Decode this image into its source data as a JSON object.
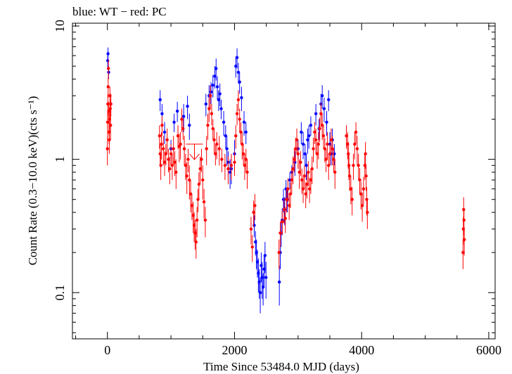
{
  "chart_data": {
    "type": "scatter",
    "title": "blue: WT − red: PC",
    "xlabel": "Time Since 53484.0 MJD (days)",
    "ylabel": "Count Rate (0.3−10.0 keV)(cts s⁻¹)",
    "x_scale": "linear",
    "y_scale": "log",
    "xlim": [
      -550,
      6100
    ],
    "ylim": [
      0.045,
      10.5
    ],
    "x_ticks": [
      0,
      2000,
      4000,
      6000
    ],
    "x_tick_labels": [
      "0",
      "2000",
      "4000",
      "6000"
    ],
    "y_ticks": [
      0.1,
      1,
      10
    ],
    "y_tick_labels": [
      "0.1",
      "1",
      "10"
    ],
    "colors": {
      "WT": "#0000ff",
      "PC": "#ff0000"
    },
    "series": [
      {
        "name": "WT",
        "color": "#0000ff",
        "points": [
          [
            5,
            5.5,
            0.6
          ],
          [
            10,
            6.2,
            0.7
          ],
          [
            20,
            4.5,
            0.5
          ],
          [
            830,
            2.8,
            0.5
          ],
          [
            860,
            2.2,
            0.4
          ],
          [
            900,
            1.6,
            0.3
          ],
          [
            1000,
            1.2,
            0.2
          ],
          [
            1050,
            1.9,
            0.3
          ],
          [
            1100,
            2.3,
            0.4
          ],
          [
            1200,
            2.1,
            0.5
          ],
          [
            1260,
            2.5,
            0.5
          ],
          [
            1290,
            1.8,
            0.4
          ],
          [
            1550,
            2.6,
            0.5
          ],
          [
            1600,
            3.0,
            0.6
          ],
          [
            1630,
            3.2,
            0.6
          ],
          [
            1660,
            3.6,
            0.7
          ],
          [
            1690,
            4.2,
            0.8
          ],
          [
            1710,
            4.8,
            0.9
          ],
          [
            1730,
            3.5,
            0.7
          ],
          [
            1750,
            2.8,
            0.5
          ],
          [
            1770,
            3.1,
            0.6
          ],
          [
            1790,
            2.4,
            0.4
          ],
          [
            1830,
            1.9,
            0.4
          ],
          [
            1860,
            1.5,
            0.3
          ],
          [
            1880,
            1.2,
            0.3
          ],
          [
            1900,
            0.95,
            0.2
          ],
          [
            1930,
            0.8,
            0.2
          ],
          [
            1950,
            0.85,
            0.2
          ],
          [
            2000,
            1.1,
            0.3
          ],
          [
            2020,
            5.0,
            0.9
          ],
          [
            2040,
            5.8,
            1.0
          ],
          [
            2060,
            4.5,
            0.8
          ],
          [
            2080,
            3.8,
            0.7
          ],
          [
            2110,
            2.9,
            0.6
          ],
          [
            2150,
            1.9,
            0.4
          ],
          [
            2180,
            1.6,
            0.3
          ],
          [
            2310,
            0.32,
            0.06
          ],
          [
            2330,
            0.24,
            0.05
          ],
          [
            2345,
            0.2,
            0.05
          ],
          [
            2360,
            0.17,
            0.04
          ],
          [
            2375,
            0.14,
            0.04
          ],
          [
            2390,
            0.12,
            0.03
          ],
          [
            2405,
            0.1,
            0.03
          ],
          [
            2420,
            0.16,
            0.04
          ],
          [
            2435,
            0.13,
            0.04
          ],
          [
            2450,
            0.11,
            0.03
          ],
          [
            2465,
            0.15,
            0.04
          ],
          [
            2480,
            0.19,
            0.05
          ],
          [
            2495,
            0.13,
            0.04
          ],
          [
            2705,
            0.12,
            0.04
          ],
          [
            2720,
            0.2,
            0.05
          ],
          [
            2735,
            0.28,
            0.06
          ],
          [
            2750,
            0.35,
            0.08
          ],
          [
            2770,
            0.5,
            0.1
          ],
          [
            2790,
            0.42,
            0.1
          ],
          [
            2810,
            0.6,
            0.1
          ],
          [
            2830,
            0.5,
            0.1
          ],
          [
            2870,
            0.7,
            0.1
          ],
          [
            2900,
            0.8,
            0.1
          ],
          [
            2950,
            0.95,
            0.2
          ],
          [
            3000,
            1.2,
            0.2
          ],
          [
            3050,
            1.6,
            0.3
          ],
          [
            3080,
            1.3,
            0.3
          ],
          [
            3110,
            1.1,
            0.2
          ],
          [
            3130,
            0.9,
            0.2
          ],
          [
            3150,
            1.4,
            0.3
          ],
          [
            3170,
            1.5,
            0.3
          ],
          [
            3200,
            1.8,
            0.3
          ],
          [
            3280,
            2.2,
            0.4
          ],
          [
            3330,
            1.7,
            0.3
          ],
          [
            3360,
            2.6,
            0.5
          ],
          [
            3380,
            3.0,
            0.6
          ],
          [
            3410,
            2.4,
            0.5
          ],
          [
            3450,
            1.9,
            0.4
          ],
          [
            3480,
            2.8,
            0.5
          ],
          [
            3500,
            1.3,
            0.3
          ],
          [
            3520,
            1.1,
            0.2
          ],
          [
            3540,
            1.4,
            0.3
          ],
          [
            3570,
            1.1,
            0.2
          ]
        ]
      },
      {
        "name": "PC",
        "color": "#ff0000",
        "points": [
          [
            0,
            1.2,
            0.3
          ],
          [
            3,
            1.9,
            0.4
          ],
          [
            7,
            2.6,
            0.5
          ],
          [
            12,
            3.5,
            0.6
          ],
          [
            16,
            4.8,
            0.8
          ],
          [
            22,
            2.3,
            0.4
          ],
          [
            26,
            1.6,
            0.3
          ],
          [
            30,
            1.4,
            0.3
          ],
          [
            35,
            2.0,
            0.4
          ],
          [
            40,
            3.0,
            0.5
          ],
          [
            45,
            2.4,
            0.4
          ],
          [
            50,
            1.8,
            0.4
          ],
          [
            55,
            2.6,
            0.5
          ],
          [
            820,
            1.5,
            0.3
          ],
          [
            830,
            1.1,
            0.2
          ],
          [
            840,
            0.9,
            0.2
          ],
          [
            850,
            1.3,
            0.3
          ],
          [
            860,
            1.8,
            0.3
          ],
          [
            880,
            1.2,
            0.3
          ],
          [
            900,
            0.95,
            0.2
          ],
          [
            920,
            1.1,
            0.2
          ],
          [
            940,
            1.4,
            0.3
          ],
          [
            960,
            1.0,
            0.2
          ],
          [
            980,
            0.85,
            0.2
          ],
          [
            1000,
            1.1,
            0.2
          ],
          [
            1020,
            0.9,
            0.2
          ],
          [
            1040,
            1.2,
            0.3
          ],
          [
            1060,
            0.95,
            0.2
          ],
          [
            1080,
            0.8,
            0.2
          ],
          [
            1110,
            1.5,
            0.3
          ],
          [
            1130,
            1.25,
            0.3
          ],
          [
            1150,
            1.3,
            0.3
          ],
          [
            1170,
            2.0,
            0.4
          ],
          [
            1190,
            1.7,
            0.3
          ],
          [
            1210,
            1.2,
            0.3
          ],
          [
            1230,
            0.9,
            0.2
          ],
          [
            1250,
            0.75,
            0.2
          ],
          [
            1270,
            1.0,
            0.2
          ],
          [
            1290,
            0.7,
            0.2
          ],
          [
            1310,
            0.55,
            0.15
          ],
          [
            1330,
            0.45,
            0.1
          ],
          [
            1350,
            0.38,
            0.1
          ],
          [
            1365,
            0.32,
            0.08
          ],
          [
            1380,
            0.28,
            0.07
          ],
          [
            1395,
            0.24,
            0.06
          ],
          [
            1410,
            0.35,
            0.09
          ],
          [
            1425,
            0.5,
            0.1
          ],
          [
            1440,
            0.65,
            0.15
          ],
          [
            1460,
            0.85,
            0.2
          ],
          [
            1480,
            1.0,
            0.2
          ],
          [
            1500,
            0.7,
            0.2
          ],
          [
            1520,
            0.48,
            0.12
          ],
          [
            1540,
            0.35,
            0.09
          ],
          [
            1560,
            1.2,
            0.3
          ],
          [
            1580,
            1.8,
            0.4
          ],
          [
            1600,
            2.4,
            0.5
          ],
          [
            1620,
            3.0,
            0.6
          ],
          [
            1640,
            2.2,
            0.4
          ],
          [
            1660,
            1.7,
            0.3
          ],
          [
            1680,
            1.4,
            0.3
          ],
          [
            1700,
            1.1,
            0.2
          ],
          [
            1720,
            1.3,
            0.3
          ],
          [
            1760,
            1.2,
            0.3
          ],
          [
            1800,
            1.0,
            0.2
          ],
          [
            1850,
            0.9,
            0.2
          ],
          [
            1900,
            0.85,
            0.2
          ],
          [
            1950,
            0.9,
            0.2
          ],
          [
            2000,
            0.95,
            0.2
          ],
          [
            2020,
            1.5,
            0.3
          ],
          [
            2040,
            2.2,
            0.4
          ],
          [
            2060,
            2.8,
            0.5
          ],
          [
            2080,
            2.0,
            0.4
          ],
          [
            2100,
            1.6,
            0.3
          ],
          [
            2120,
            1.3,
            0.3
          ],
          [
            2140,
            1.1,
            0.2
          ],
          [
            2160,
            0.9,
            0.2
          ],
          [
            2180,
            1.0,
            0.2
          ],
          [
            2200,
            0.8,
            0.2
          ],
          [
            2260,
            0.3,
            0.07
          ],
          [
            2280,
            0.22,
            0.05
          ],
          [
            2300,
            0.4,
            0.09
          ],
          [
            2320,
            0.45,
            0.1
          ],
          [
            2700,
            0.2,
            0.05
          ],
          [
            2720,
            0.28,
            0.06
          ],
          [
            2750,
            0.34,
            0.07
          ],
          [
            2780,
            0.42,
            0.09
          ],
          [
            2800,
            0.36,
            0.08
          ],
          [
            2820,
            0.5,
            0.1
          ],
          [
            2840,
            0.6,
            0.12
          ],
          [
            2860,
            0.45,
            0.1
          ],
          [
            2880,
            0.55,
            0.12
          ],
          [
            2900,
            0.7,
            0.15
          ],
          [
            2920,
            0.85,
            0.2
          ],
          [
            2940,
            1.0,
            0.2
          ],
          [
            2960,
            1.2,
            0.25
          ],
          [
            2980,
            1.4,
            0.3
          ],
          [
            3000,
            1.1,
            0.25
          ],
          [
            3020,
            0.8,
            0.2
          ],
          [
            3040,
            0.95,
            0.2
          ],
          [
            3060,
            0.7,
            0.15
          ],
          [
            3080,
            0.6,
            0.13
          ],
          [
            3100,
            0.75,
            0.15
          ],
          [
            3120,
            0.55,
            0.12
          ],
          [
            3140,
            0.65,
            0.14
          ],
          [
            3160,
            0.8,
            0.17
          ],
          [
            3180,
            0.6,
            0.13
          ],
          [
            3200,
            0.7,
            0.15
          ],
          [
            3220,
            0.85,
            0.2
          ],
          [
            3240,
            1.2,
            0.25
          ],
          [
            3260,
            1.6,
            0.3
          ],
          [
            3280,
            1.4,
            0.3
          ],
          [
            3300,
            1.1,
            0.25
          ],
          [
            3320,
            1.3,
            0.3
          ],
          [
            3340,
            1.7,
            0.35
          ],
          [
            3360,
            2.2,
            0.45
          ],
          [
            3380,
            1.8,
            0.4
          ],
          [
            3400,
            1.5,
            0.3
          ],
          [
            3420,
            1.2,
            0.25
          ],
          [
            3440,
            1.0,
            0.2
          ],
          [
            3460,
            1.3,
            0.3
          ],
          [
            3480,
            0.9,
            0.2
          ],
          [
            3500,
            1.1,
            0.2
          ],
          [
            3520,
            1.4,
            0.3
          ],
          [
            3540,
            1.2,
            0.3
          ],
          [
            3560,
            1.0,
            0.2
          ],
          [
            3580,
            0.8,
            0.2
          ],
          [
            3760,
            1.5,
            0.3
          ],
          [
            3780,
            1.3,
            0.3
          ],
          [
            3790,
            1.1,
            0.25
          ],
          [
            3800,
            0.9,
            0.2
          ],
          [
            3810,
            0.75,
            0.17
          ],
          [
            3830,
            0.6,
            0.14
          ],
          [
            3850,
            0.5,
            0.12
          ],
          [
            3870,
            0.9,
            0.2
          ],
          [
            3890,
            1.3,
            0.3
          ],
          [
            3910,
            1.6,
            0.3
          ],
          [
            3930,
            1.2,
            0.3
          ],
          [
            3950,
            0.9,
            0.2
          ],
          [
            3970,
            0.7,
            0.16
          ],
          [
            3990,
            0.55,
            0.13
          ],
          [
            4010,
            0.45,
            0.11
          ],
          [
            4030,
            0.6,
            0.14
          ],
          [
            4050,
            0.9,
            0.2
          ],
          [
            4060,
            1.1,
            0.25
          ],
          [
            4070,
            0.75,
            0.17
          ],
          [
            4080,
            0.5,
            0.12
          ],
          [
            4090,
            0.4,
            0.1
          ],
          [
            5595,
            0.2,
            0.05
          ],
          [
            5600,
            0.3,
            0.07
          ],
          [
            5605,
            0.42,
            0.1
          ],
          [
            5610,
            0.35,
            0.08
          ],
          [
            5615,
            0.25,
            0.06
          ]
        ]
      }
    ],
    "upper_limits": [
      {
        "series": "PC",
        "color": "#ff0000",
        "x": 1370,
        "y": 1.3
      }
    ]
  }
}
